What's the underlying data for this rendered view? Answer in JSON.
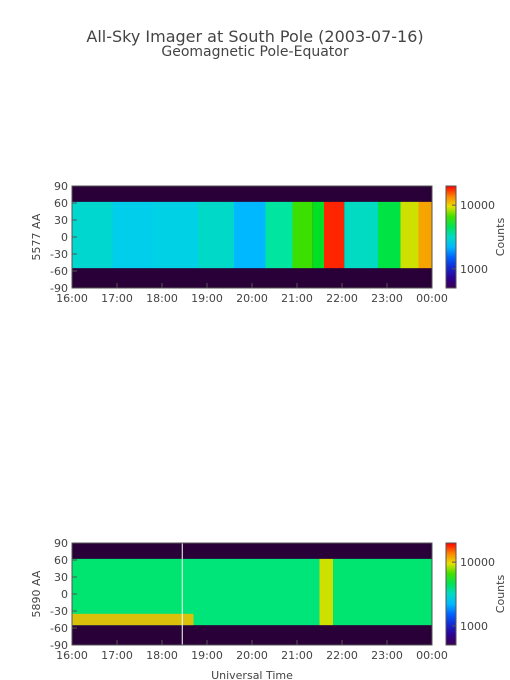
{
  "figure": {
    "title": "All-Sky Imager at South Pole (2003-07-16)",
    "subtitle": "Geomagnetic Pole-Equator"
  },
  "chart_data": [
    {
      "type": "heatmap",
      "name": "panel-5577",
      "ylabel": "5577 AA",
      "xlabel": "",
      "x_ticks": [
        "16:00",
        "17:00",
        "18:00",
        "19:00",
        "20:00",
        "21:00",
        "22:00",
        "23:00",
        "00:00"
      ],
      "y_ticks": [
        90,
        60,
        30,
        0,
        -30,
        -60,
        -90
      ],
      "ylim": [
        -90,
        90
      ],
      "xlim_hours": [
        16,
        24
      ],
      "colorbar": {
        "label": "Counts",
        "ticks": [
          10000,
          1000
        ],
        "scale": "log",
        "range": [
          500,
          20000
        ]
      },
      "data_band_lat": [
        -55,
        62
      ],
      "segments_hours_counts": [
        [
          16.0,
          16.9,
          3000
        ],
        [
          16.9,
          17.8,
          2600
        ],
        [
          17.8,
          18.8,
          2700
        ],
        [
          18.8,
          19.6,
          3100
        ],
        [
          19.6,
          20.3,
          2200
        ],
        [
          20.3,
          20.9,
          3800
        ],
        [
          20.9,
          21.35,
          6500
        ],
        [
          21.35,
          21.6,
          5200
        ],
        [
          21.6,
          22.05,
          18000
        ],
        [
          22.05,
          22.8,
          3200
        ],
        [
          22.8,
          23.3,
          4800
        ],
        [
          23.3,
          23.7,
          9000
        ],
        [
          23.7,
          24.0,
          12000
        ]
      ]
    },
    {
      "type": "heatmap",
      "name": "panel-5890",
      "ylabel": "5890 AA",
      "xlabel": "Universal Time",
      "x_ticks": [
        "16:00",
        "17:00",
        "18:00",
        "19:00",
        "20:00",
        "21:00",
        "22:00",
        "23:00",
        "00:00"
      ],
      "y_ticks": [
        90,
        60,
        30,
        0,
        -30,
        -60,
        -90
      ],
      "ylim": [
        -90,
        90
      ],
      "xlim_hours": [
        16,
        24
      ],
      "colorbar": {
        "label": "Counts",
        "ticks": [
          10000,
          1000
        ],
        "scale": "log",
        "range": [
          500,
          20000
        ]
      },
      "data_band_lat": [
        -55,
        62
      ],
      "segments_hours_counts": [
        [
          16.0,
          18.5,
          4300
        ],
        [
          18.5,
          21.5,
          4200
        ],
        [
          21.5,
          21.8,
          9000
        ],
        [
          21.8,
          24.0,
          4300
        ]
      ],
      "enhancement": {
        "lat_range": [
          -55,
          -35
        ],
        "hours": [
          16.0,
          18.7
        ],
        "counts": 11000
      },
      "marker_hour": 18.45
    }
  ]
}
